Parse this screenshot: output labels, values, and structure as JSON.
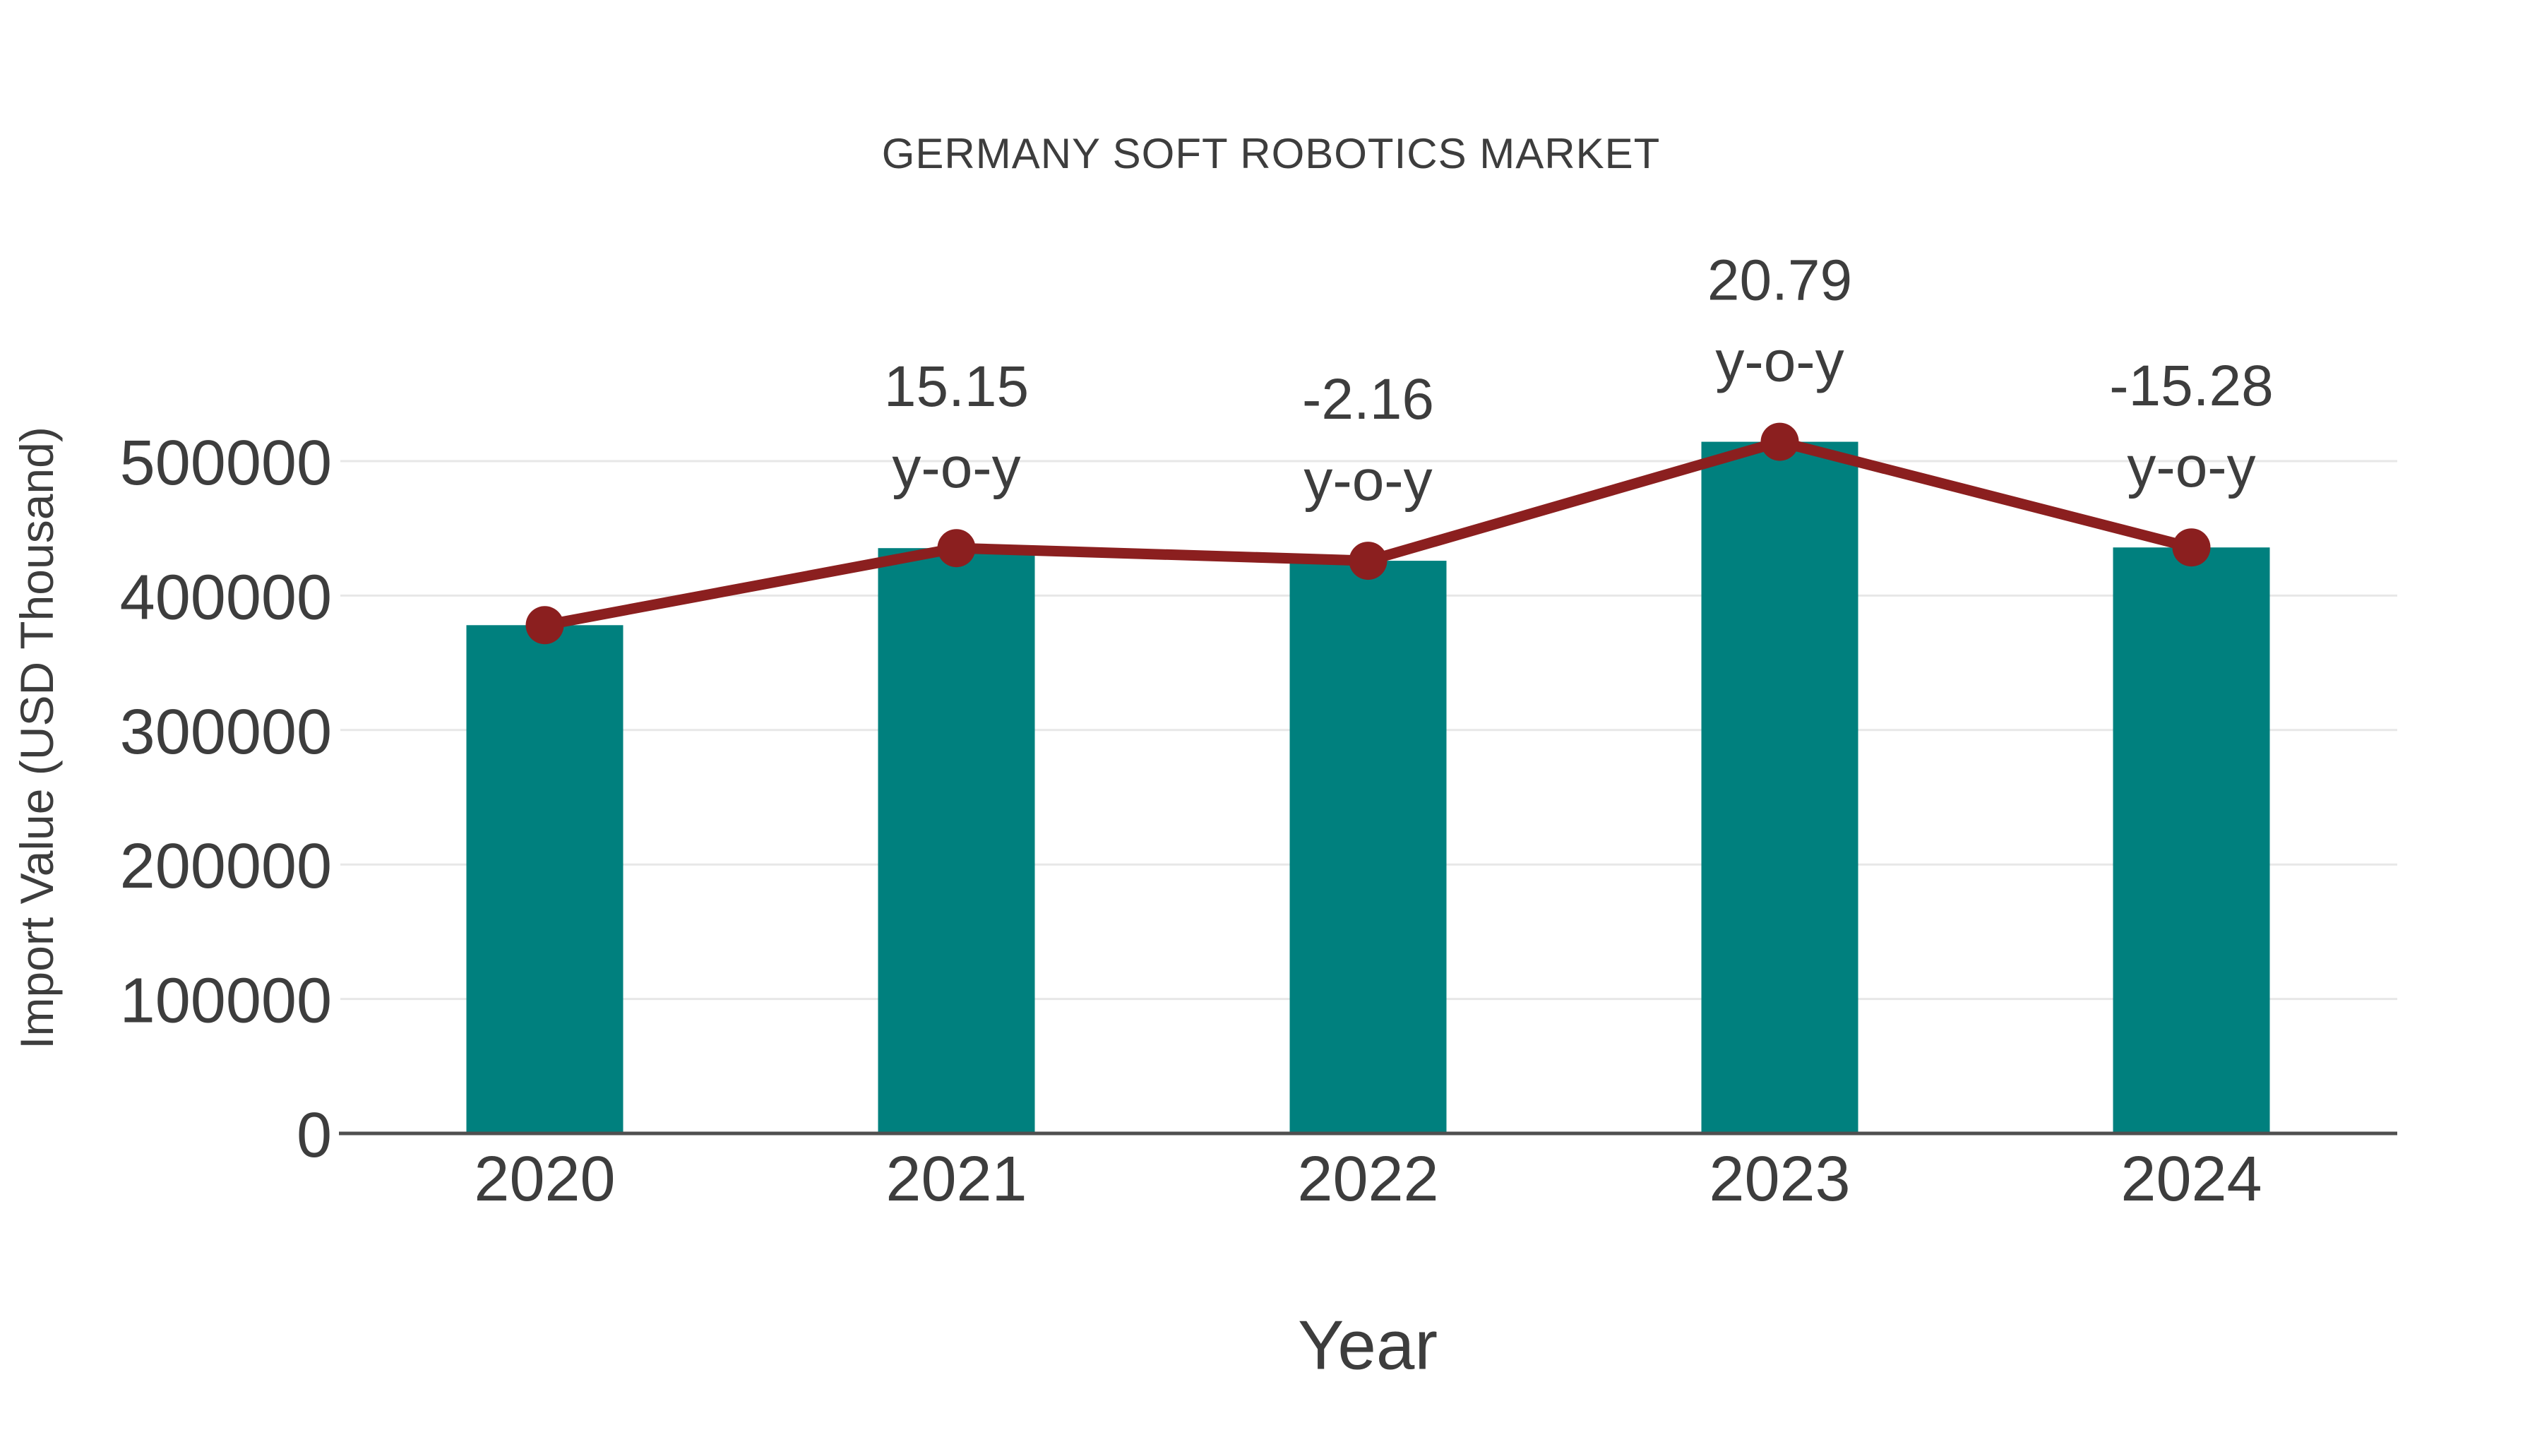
{
  "chart_data": {
    "type": "bar",
    "title": "GERMANY SOFT ROBOTICS MARKET",
    "xlabel": "Year",
    "ylabel": "Import Value (USD Thousand)",
    "categories": [
      "2020",
      "2021",
      "2022",
      "2023",
      "2024"
    ],
    "series": [
      {
        "name": "Import Value",
        "type": "bar",
        "values": [
          378000,
          435300,
          425900,
          514400,
          435800
        ]
      },
      {
        "name": "Import Value trend",
        "type": "line",
        "values": [
          378000,
          435300,
          425900,
          514400,
          435800
        ]
      }
    ],
    "annotations": [
      {
        "index": 1,
        "value_label": "15.15",
        "unit_label": "y-o-y"
      },
      {
        "index": 2,
        "value_label": "-2.16",
        "unit_label": "y-o-y"
      },
      {
        "index": 3,
        "value_label": "20.79",
        "unit_label": "y-o-y"
      },
      {
        "index": 4,
        "value_label": "-15.28",
        "unit_label": "y-o-y"
      }
    ],
    "yticks": [
      0,
      100000,
      200000,
      300000,
      400000,
      500000
    ],
    "ylim": [
      0,
      500000
    ],
    "grid": true,
    "legend_position": "none"
  },
  "style": {
    "bar_color": "#00807E",
    "line_color": "#8B1F1F",
    "marker_color": "#8B1F1F",
    "text_color": "#3D3D3D",
    "grid_color": "#E7E7E7",
    "axis_color": "#4F4F4F",
    "background_color": "#FFFFFF"
  }
}
